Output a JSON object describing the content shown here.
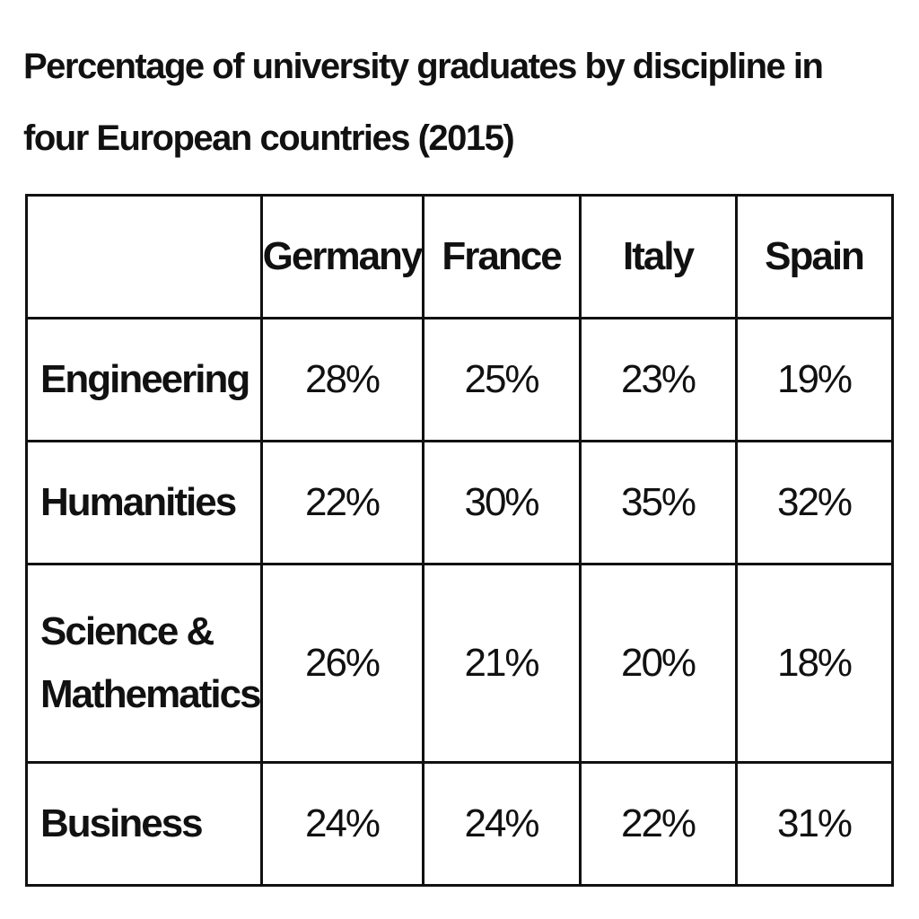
{
  "title": "Percentage of university graduates by discipline in four European countries (2015)",
  "table": {
    "columns": [
      "Germany",
      "France",
      "Italy",
      "Spain"
    ],
    "rows": [
      {
        "label": "Engineering",
        "cells": [
          "28%",
          "25%",
          "23%",
          "19%"
        ]
      },
      {
        "label": "Humanities",
        "cells": [
          "22%",
          "30%",
          "35%",
          "32%"
        ]
      },
      {
        "label": "Science & Mathematics",
        "cells": [
          "26%",
          "21%",
          "20%",
          "18%"
        ]
      },
      {
        "label": "Business",
        "cells": [
          "24%",
          "24%",
          "22%",
          "31%"
        ]
      }
    ]
  }
}
